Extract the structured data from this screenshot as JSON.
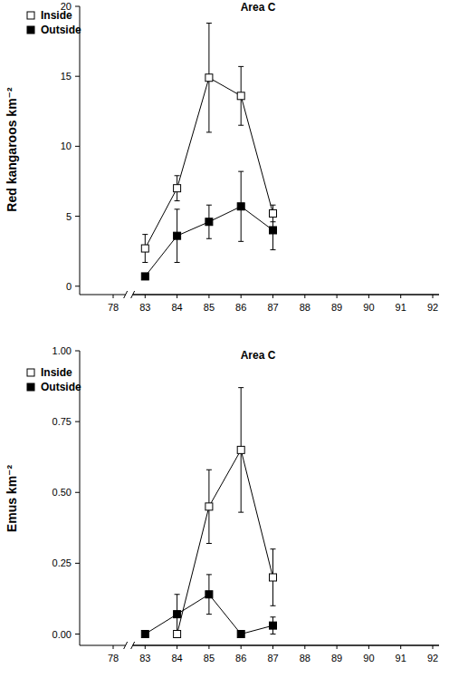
{
  "chart_data": [
    {
      "type": "line",
      "title": "Area C",
      "y_label": "Red kangaroos km⁻²",
      "categories": [
        "78",
        "83",
        "84",
        "85",
        "86",
        "87",
        "88",
        "89",
        "90",
        "91",
        "92"
      ],
      "series": [
        {
          "name": "Inside",
          "color": "#ffffff",
          "marker": "square",
          "values": [
            null,
            2.7,
            7.0,
            14.9,
            13.6,
            5.2,
            null,
            null,
            null,
            null,
            null
          ],
          "errors": [
            null,
            1.0,
            0.9,
            3.9,
            2.1,
            0.6,
            null,
            null,
            null,
            null,
            null
          ]
        },
        {
          "name": "Outside",
          "color": "#000000",
          "marker": "square",
          "values": [
            null,
            0.7,
            3.6,
            4.6,
            5.7,
            4.0,
            null,
            null,
            null,
            null,
            null
          ],
          "errors": [
            null,
            0.2,
            1.9,
            1.2,
            2.5,
            1.4,
            null,
            null,
            null,
            null,
            null
          ]
        }
      ],
      "ylim": [
        -0.6,
        20
      ],
      "yticks": [
        0,
        5,
        10,
        15,
        20
      ],
      "legend": "top-left"
    },
    {
      "type": "line",
      "title": "Area C",
      "y_label": "Emus km⁻²",
      "categories": [
        "78",
        "83",
        "84",
        "85",
        "86",
        "87",
        "88",
        "89",
        "90",
        "91",
        "92"
      ],
      "series": [
        {
          "name": "Inside",
          "color": "#ffffff",
          "marker": "square",
          "values": [
            null,
            null,
            0.0,
            0.45,
            0.65,
            0.2,
            null,
            null,
            null,
            null,
            null
          ],
          "errors": [
            null,
            null,
            0.0,
            0.13,
            0.22,
            0.1,
            null,
            null,
            null,
            null,
            null
          ]
        },
        {
          "name": "Outside",
          "color": "#000000",
          "marker": "square",
          "values": [
            null,
            0.0,
            0.07,
            0.14,
            0.0,
            0.03,
            null,
            null,
            null,
            null,
            null
          ],
          "errors": [
            null,
            0.0,
            0.07,
            0.07,
            0.0,
            0.03,
            null,
            null,
            null,
            null,
            null
          ]
        }
      ],
      "ylim": [
        -0.04,
        1
      ],
      "yticks": [
        {
          "value": 0,
          "label": "0.00"
        },
        {
          "value": 0.25,
          "label": "0.25"
        },
        {
          "value": 0.5,
          "label": "0.50"
        },
        {
          "value": 0.75,
          "label": "0.75"
        },
        {
          "value": 1,
          "label": "1.00"
        }
      ],
      "legend": "top-left"
    }
  ]
}
